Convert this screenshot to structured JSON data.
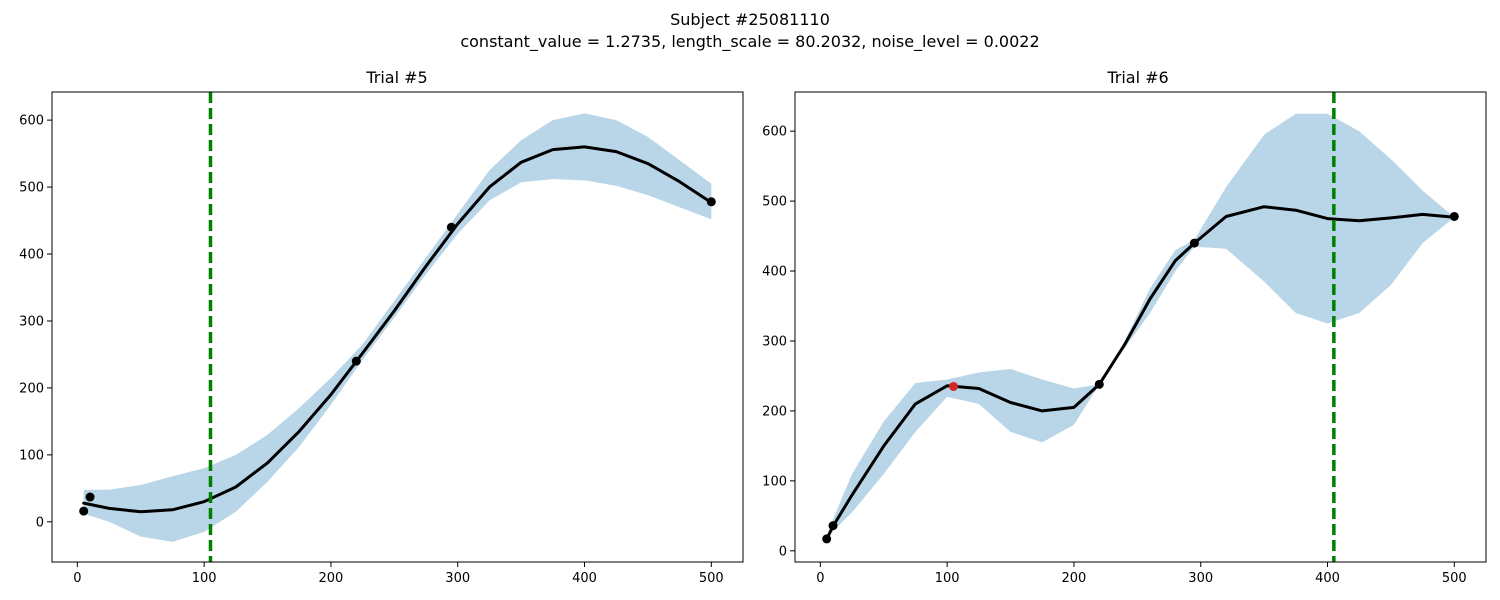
{
  "figure": {
    "title": "Subject #25081110",
    "subtitle": "constant_value = 1.2735,  length_scale = 80.2032,  noise_level = 0.0022"
  },
  "chart_data": [
    {
      "type": "line",
      "title": "Trial #5",
      "xlabel": "",
      "ylabel": "",
      "xlim": [
        -20,
        525
      ],
      "ylim": [
        -60,
        642
      ],
      "xticks": [
        0,
        100,
        200,
        300,
        400,
        500
      ],
      "yticks": [
        0,
        100,
        200,
        300,
        400,
        500,
        600
      ],
      "grid": false,
      "vline": {
        "x": 105,
        "color": "#008000",
        "style": "dashed"
      },
      "mean": {
        "color": "#000000",
        "x": [
          5,
          25,
          50,
          75,
          100,
          125,
          150,
          175,
          200,
          225,
          250,
          275,
          300,
          325,
          350,
          375,
          400,
          425,
          450,
          475,
          500
        ],
        "y": [
          28,
          20,
          15,
          18,
          30,
          52,
          88,
          135,
          190,
          252,
          315,
          382,
          445,
          500,
          537,
          556,
          560,
          553,
          535,
          508,
          477
        ]
      },
      "band": {
        "color": "#b9d5e8",
        "x": [
          5,
          25,
          50,
          75,
          100,
          125,
          150,
          175,
          200,
          225,
          250,
          275,
          300,
          325,
          350,
          375,
          400,
          425,
          450,
          475,
          500
        ],
        "lower": [
          12,
          0,
          -22,
          -30,
          -15,
          15,
          60,
          112,
          175,
          242,
          305,
          370,
          430,
          480,
          507,
          512,
          510,
          502,
          488,
          470,
          452
        ],
        "upper": [
          48,
          48,
          55,
          68,
          80,
          100,
          130,
          170,
          215,
          265,
          330,
          395,
          460,
          525,
          570,
          600,
          610,
          600,
          575,
          540,
          505
        ]
      },
      "points": [
        {
          "x": 5,
          "y": 16,
          "color": "#000000"
        },
        {
          "x": 10,
          "y": 37,
          "color": "#000000"
        },
        {
          "x": 220,
          "y": 240,
          "color": "#000000"
        },
        {
          "x": 295,
          "y": 440,
          "color": "#000000"
        },
        {
          "x": 500,
          "y": 478,
          "color": "#000000"
        }
      ]
    },
    {
      "type": "line",
      "title": "Trial #6",
      "xlabel": "",
      "ylabel": "",
      "xlim": [
        -20,
        525
      ],
      "ylim": [
        -16,
        656
      ],
      "xticks": [
        0,
        100,
        200,
        300,
        400,
        500
      ],
      "yticks": [
        0,
        100,
        200,
        300,
        400,
        500,
        600
      ],
      "grid": false,
      "vline": {
        "x": 405,
        "color": "#008000",
        "style": "dashed"
      },
      "mean": {
        "color": "#000000",
        "x": [
          5,
          10,
          25,
          50,
          75,
          100,
          125,
          150,
          175,
          200,
          220,
          240,
          260,
          280,
          295,
          320,
          350,
          375,
          400,
          425,
          450,
          475,
          500
        ],
        "y": [
          17,
          35,
          80,
          150,
          210,
          236,
          232,
          212,
          200,
          205,
          238,
          295,
          360,
          415,
          440,
          478,
          492,
          487,
          475,
          472,
          476,
          481,
          477
        ]
      },
      "band": {
        "color": "#b9d5e8",
        "x": [
          5,
          10,
          25,
          50,
          75,
          100,
          125,
          150,
          175,
          200,
          220,
          240,
          260,
          280,
          295,
          320,
          350,
          375,
          400,
          425,
          450,
          475,
          500
        ],
        "lower": [
          17,
          28,
          55,
          110,
          170,
          220,
          210,
          170,
          155,
          180,
          238,
          290,
          340,
          400,
          435,
          432,
          385,
          340,
          325,
          340,
          380,
          440,
          477
        ],
        "upper": [
          17,
          45,
          110,
          185,
          240,
          245,
          255,
          260,
          245,
          232,
          238,
          300,
          375,
          430,
          445,
          520,
          595,
          625,
          625,
          600,
          560,
          515,
          477
        ]
      },
      "points": [
        {
          "x": 5,
          "y": 17,
          "color": "#000000"
        },
        {
          "x": 10,
          "y": 36,
          "color": "#000000"
        },
        {
          "x": 105,
          "y": 235,
          "color": "#d62728"
        },
        {
          "x": 220,
          "y": 238,
          "color": "#000000"
        },
        {
          "x": 295,
          "y": 440,
          "color": "#000000"
        },
        {
          "x": 500,
          "y": 478,
          "color": "#000000"
        }
      ]
    }
  ]
}
